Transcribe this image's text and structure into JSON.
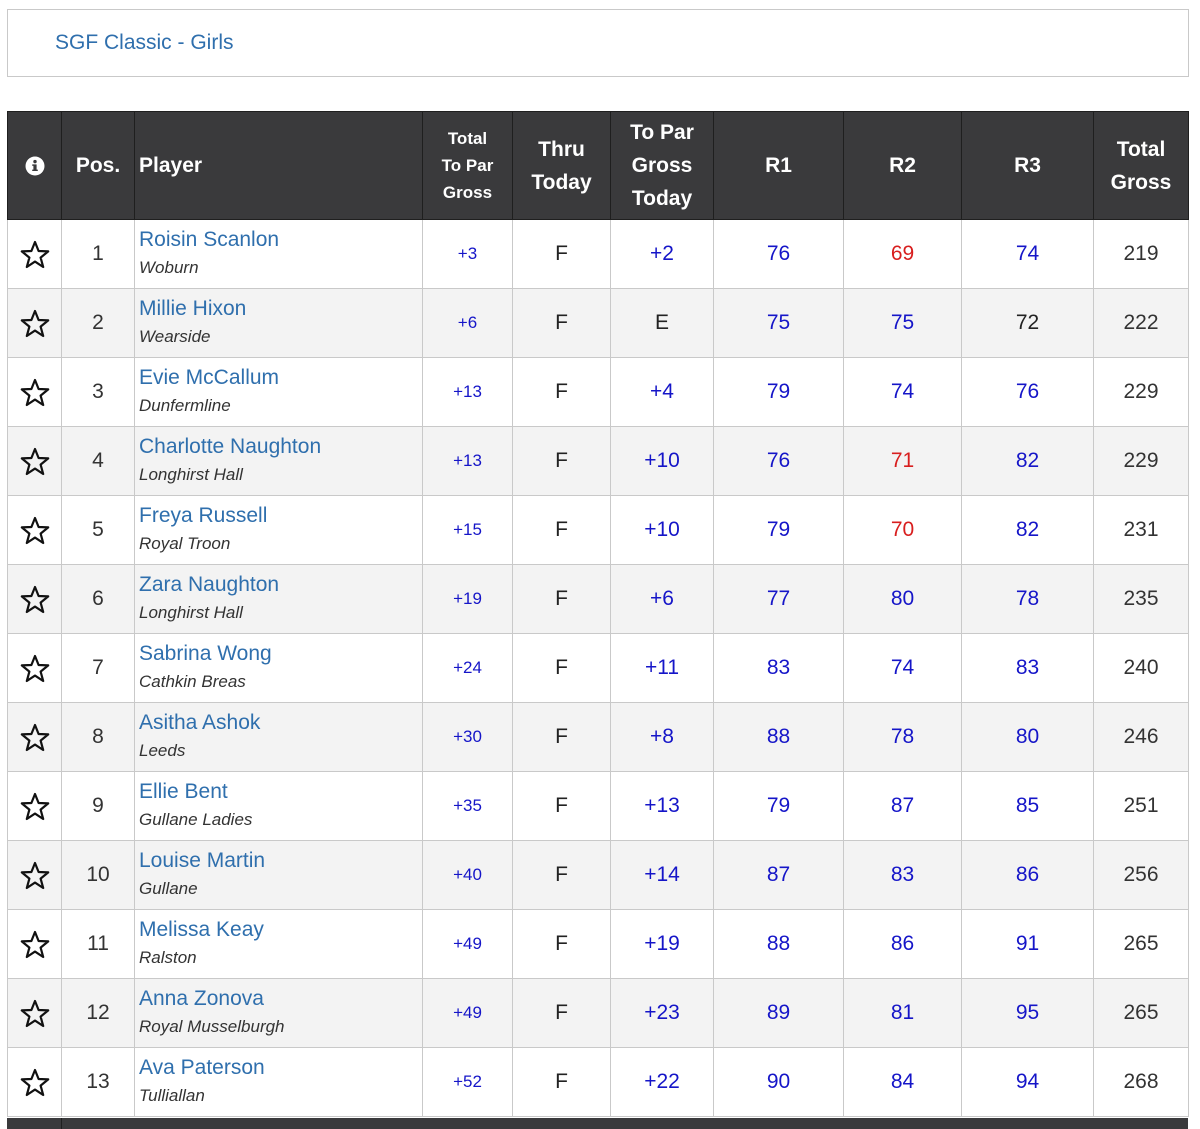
{
  "header": {
    "title": "SGF Classic - Girls"
  },
  "table": {
    "columns": {
      "info_icon": "info-circle-icon",
      "pos": "Pos.",
      "player": "Player",
      "total_to_par": [
        "Total",
        "To Par",
        "Gross"
      ],
      "thru": [
        "Thru",
        "Today"
      ],
      "to_par_today": [
        "To Par",
        "Gross",
        "Today"
      ],
      "r1": "R1",
      "r2": "R2",
      "r3": "R3",
      "total_gross": [
        "Total",
        "Gross"
      ]
    },
    "favorite_icon": "star-outline-icon",
    "score_colors": {
      "under_par": "#d81e1e",
      "par": "#222222",
      "over_par": "#1515c8"
    },
    "rows": [
      {
        "pos": "1",
        "name": "Roisin Scanlon",
        "club": "Woburn",
        "total_to_par": "+3",
        "thru": "F",
        "to_par_today": "+2",
        "r1": "76",
        "r2": "69",
        "r3": "74",
        "total": "219",
        "c1": "blue",
        "c2": "red",
        "c3": "blue",
        "ct": "blue"
      },
      {
        "pos": "2",
        "name": "Millie Hixon",
        "club": "Wearside",
        "total_to_par": "+6",
        "thru": "F",
        "to_par_today": "E",
        "r1": "75",
        "r2": "75",
        "r3": "72",
        "total": "222",
        "c1": "blue",
        "c2": "blue",
        "c3": "black",
        "ct": "black"
      },
      {
        "pos": "3",
        "name": "Evie McCallum",
        "club": "Dunfermline",
        "total_to_par": "+13",
        "thru": "F",
        "to_par_today": "+4",
        "r1": "79",
        "r2": "74",
        "r3": "76",
        "total": "229",
        "c1": "blue",
        "c2": "blue",
        "c3": "blue",
        "ct": "blue"
      },
      {
        "pos": "4",
        "name": "Charlotte Naughton",
        "club": "Longhirst Hall",
        "total_to_par": "+13",
        "thru": "F",
        "to_par_today": "+10",
        "r1": "76",
        "r2": "71",
        "r3": "82",
        "total": "229",
        "c1": "blue",
        "c2": "red",
        "c3": "blue",
        "ct": "blue"
      },
      {
        "pos": "5",
        "name": "Freya Russell",
        "club": "Royal Troon",
        "total_to_par": "+15",
        "thru": "F",
        "to_par_today": "+10",
        "r1": "79",
        "r2": "70",
        "r3": "82",
        "total": "231",
        "c1": "blue",
        "c2": "red",
        "c3": "blue",
        "ct": "blue"
      },
      {
        "pos": "6",
        "name": "Zara Naughton",
        "club": "Longhirst Hall",
        "total_to_par": "+19",
        "thru": "F",
        "to_par_today": "+6",
        "r1": "77",
        "r2": "80",
        "r3": "78",
        "total": "235",
        "c1": "blue",
        "c2": "blue",
        "c3": "blue",
        "ct": "blue"
      },
      {
        "pos": "7",
        "name": "Sabrina Wong",
        "club": "Cathkin Breas",
        "total_to_par": "+24",
        "thru": "F",
        "to_par_today": "+11",
        "r1": "83",
        "r2": "74",
        "r3": "83",
        "total": "240",
        "c1": "blue",
        "c2": "blue",
        "c3": "blue",
        "ct": "blue"
      },
      {
        "pos": "8",
        "name": "Asitha Ashok",
        "club": "Leeds",
        "total_to_par": "+30",
        "thru": "F",
        "to_par_today": "+8",
        "r1": "88",
        "r2": "78",
        "r3": "80",
        "total": "246",
        "c1": "blue",
        "c2": "blue",
        "c3": "blue",
        "ct": "blue"
      },
      {
        "pos": "9",
        "name": "Ellie Bent",
        "club": "Gullane Ladies",
        "total_to_par": "+35",
        "thru": "F",
        "to_par_today": "+13",
        "r1": "79",
        "r2": "87",
        "r3": "85",
        "total": "251",
        "c1": "blue",
        "c2": "blue",
        "c3": "blue",
        "ct": "blue"
      },
      {
        "pos": "10",
        "name": "Louise Martin",
        "club": "Gullane",
        "total_to_par": "+40",
        "thru": "F",
        "to_par_today": "+14",
        "r1": "87",
        "r2": "83",
        "r3": "86",
        "total": "256",
        "c1": "blue",
        "c2": "blue",
        "c3": "blue",
        "ct": "blue"
      },
      {
        "pos": "11",
        "name": "Melissa Keay",
        "club": "Ralston",
        "total_to_par": "+49",
        "thru": "F",
        "to_par_today": "+19",
        "r1": "88",
        "r2": "86",
        "r3": "91",
        "total": "265",
        "c1": "blue",
        "c2": "blue",
        "c3": "blue",
        "ct": "blue"
      },
      {
        "pos": "12",
        "name": "Anna Zonova",
        "club": "Royal Musselburgh",
        "total_to_par": "+49",
        "thru": "F",
        "to_par_today": "+23",
        "r1": "89",
        "r2": "81",
        "r3": "95",
        "total": "265",
        "c1": "blue",
        "c2": "blue",
        "c3": "blue",
        "ct": "blue"
      },
      {
        "pos": "13",
        "name": "Ava Paterson",
        "club": "Tulliallan",
        "total_to_par": "+52",
        "thru": "F",
        "to_par_today": "+22",
        "r1": "90",
        "r2": "84",
        "r3": "94",
        "total": "268",
        "c1": "blue",
        "c2": "blue",
        "c3": "blue",
        "ct": "blue"
      }
    ]
  }
}
